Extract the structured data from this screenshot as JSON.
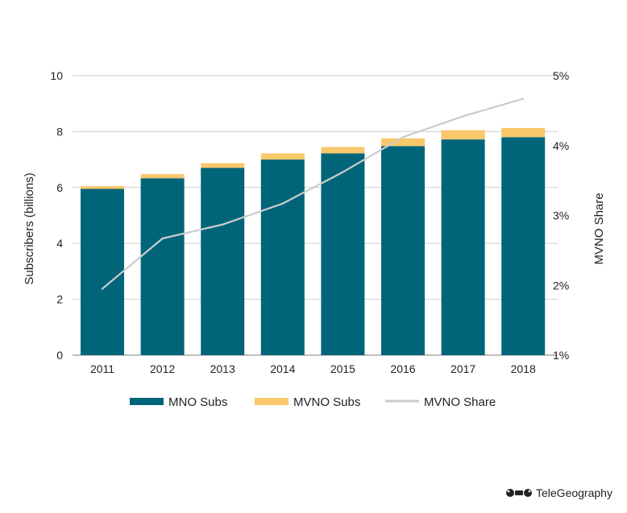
{
  "chart_data": {
    "type": "bar",
    "categories": [
      "2011",
      "2012",
      "2013",
      "2014",
      "2015",
      "2016",
      "2017",
      "2018"
    ],
    "series": [
      {
        "name": "MNO Subs",
        "type": "bar",
        "axis": "left",
        "stack": "subs",
        "color": "#006579",
        "values": [
          5.95,
          6.33,
          6.7,
          7.0,
          7.22,
          7.48,
          7.72,
          7.8
        ]
      },
      {
        "name": "MVNO Subs",
        "type": "bar",
        "axis": "left",
        "stack": "subs",
        "color": "#f9c86a",
        "values": [
          0.1,
          0.15,
          0.17,
          0.22,
          0.23,
          0.28,
          0.33,
          0.33
        ]
      },
      {
        "name": "MVNO Share",
        "type": "line",
        "axis": "right",
        "color": "#cccccc",
        "values": [
          1.95,
          2.67,
          2.87,
          3.17,
          3.62,
          4.12,
          4.42,
          4.67
        ]
      }
    ],
    "y_left": {
      "label": "Subscribers (billions)",
      "min": 0,
      "max": 10,
      "ticks": [
        0,
        2,
        4,
        6,
        8,
        10
      ]
    },
    "y_right": {
      "label": "MVNO Share",
      "min": 1,
      "max": 5,
      "ticks": [
        1,
        2,
        3,
        4,
        5
      ],
      "tick_labels": [
        "1%",
        "2%",
        "3%",
        "4%",
        "5%"
      ]
    },
    "grid": true,
    "legend_position": "bottom"
  },
  "branding": {
    "name": "TeleGeography",
    "icon": "telegeography-logo-icon"
  }
}
